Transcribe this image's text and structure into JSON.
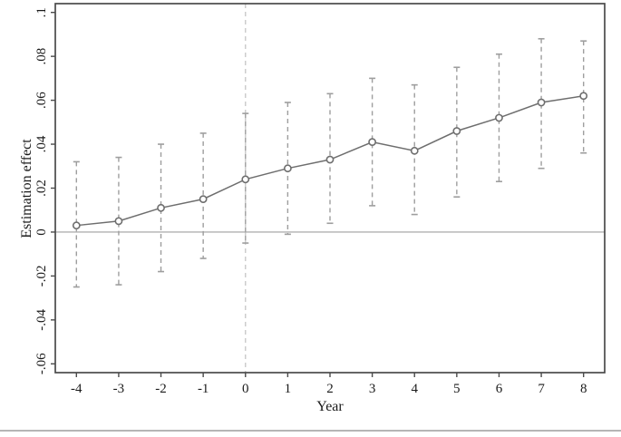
{
  "figure": {
    "bottom_divider_color": "#b5b5b5"
  },
  "chart_data": {
    "type": "line",
    "title": "",
    "xlabel": "Year",
    "ylabel": "Estimation effect",
    "x": [
      -4,
      -3,
      -2,
      -1,
      0,
      1,
      2,
      3,
      4,
      5,
      6,
      7,
      8
    ],
    "series": [
      {
        "name": "estimation effect",
        "marker": "open-circle",
        "values": [
          0.003,
          0.005,
          0.011,
          0.015,
          0.024,
          0.029,
          0.033,
          0.041,
          0.037,
          0.046,
          0.052,
          0.059,
          0.062
        ],
        "ci_upper": [
          0.032,
          0.034,
          0.04,
          0.045,
          0.054,
          0.059,
          0.063,
          0.07,
          0.067,
          0.075,
          0.081,
          0.088,
          0.087
        ],
        "ci_lower": [
          -0.025,
          -0.024,
          -0.018,
          -0.012,
          -0.005,
          -0.001,
          0.004,
          0.012,
          0.008,
          0.016,
          0.023,
          0.029,
          0.036
        ]
      }
    ],
    "xticks": [
      -4,
      -3,
      -2,
      -1,
      0,
      1,
      2,
      3,
      4,
      5,
      6,
      7,
      8
    ],
    "xtick_labels": [
      "-4",
      "-3",
      "-2",
      "-1",
      "0",
      "1",
      "2",
      "3",
      "4",
      "5",
      "6",
      "7",
      "8"
    ],
    "yticks": [
      0.1,
      0.08,
      0.06,
      0.04,
      0.02,
      0,
      -0.02,
      -0.04,
      -0.06
    ],
    "ytick_labels": [
      ".1",
      ".08",
      ".06",
      ".04",
      ".02",
      "0",
      "-.02",
      "-.04",
      "-.06"
    ],
    "xlim": [
      -4.5,
      8.5
    ],
    "ylim": [
      -0.064,
      0.104
    ],
    "grid": false,
    "legend": "none",
    "reference_lines": [
      {
        "orientation": "vertical",
        "x": 0,
        "style": "dashed"
      },
      {
        "orientation": "horizontal",
        "y": 0,
        "style": "solid"
      }
    ],
    "colors": {
      "line": "#6e6e6e",
      "marker_fill": "#ffffff",
      "error_bar": "#9e9e9e",
      "vertical_ref": "#c6c6c6",
      "horizontal_ref": "#b0b0b0",
      "frame": "#4a4a4a",
      "text": "#1a1a1a"
    }
  }
}
